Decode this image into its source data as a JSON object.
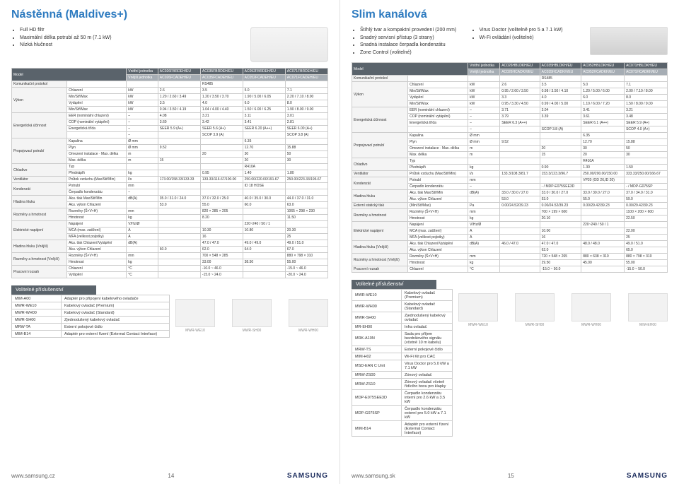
{
  "left": {
    "title": "Nástěnná (Maldives+)",
    "features": [
      "Full HD filtr",
      "Maximální délka potrubí až 50 m (7.1 kW)",
      "Nízká hlučnost"
    ],
    "header": {
      "vnitrni": "Vnitřní jednotka",
      "vnejsi": "Vnější jednotka",
      "model": "Model",
      "models_in": [
        "AC026FBRDEH/EU",
        "AC035FBRDEH/EU",
        "AC052FBRDEH/EU",
        "AC071FBRDEH/EU"
      ],
      "models_out": [
        "AC026FCADEH/EU",
        "AC035FCADEH/EU",
        "AC052FCADEH/EU",
        "AC071FCADEH/EU"
      ]
    },
    "rows": [
      {
        "g": "Komunikační protokol",
        "l": "",
        "u": "",
        "v": [
          "",
          "RS485",
          "",
          ""
        ]
      },
      {
        "g": "Výkon",
        "l": "Chlazení",
        "u": "kW",
        "v": [
          "2.6",
          "3.5",
          "5.0",
          "7.1"
        ]
      },
      {
        "g": "Výkon",
        "l": "Min/Stř/Max",
        "u": "kW",
        "v": [
          "1.20 / 2.60 / 3.49",
          "1.20 / 3.50 / 3.70",
          "1.90 / 5.00 / 6.05",
          "2.20 / 7.10 / 8.00"
        ]
      },
      {
        "g": "Výkon",
        "l": "Vytápění",
        "u": "kW",
        "v": [
          "3.5",
          "4.0",
          "6.0",
          "8.0"
        ]
      },
      {
        "g": "Výkon",
        "l": "Min/Stř/Max",
        "u": "kW",
        "v": [
          "0.94 / 3.50 / 4.19",
          "1.04 / 4.00 / 4.40",
          "1.50 / 6.00 / 6.25",
          "1.90 / 8.00 / 9.00"
        ]
      },
      {
        "g": "Energetická účinnost",
        "l": "EER (nominální chlazení)",
        "u": "–",
        "v": [
          "4.08",
          "3.21",
          "3.11",
          "3.01"
        ]
      },
      {
        "g": "Energetická účinnost",
        "l": "COP (nominální vytápění)",
        "u": "–",
        "v": [
          "3.60",
          "3.42",
          "3.41",
          "2.81"
        ]
      },
      {
        "g": "Energetická účinnost",
        "l": "Energetická třída",
        "u": "–",
        "v": [
          "SEER 5.9 (A+)",
          "SEER 5.6 (A+)",
          "SEER 6.20 (A++)",
          "SEER 6.00 (A+)"
        ]
      },
      {
        "g": "Energetická účinnost",
        "l": "",
        "u": "–",
        "v": [
          "",
          "SCOP 3.9 (A)",
          "",
          "SCOP 3.8 (A)"
        ]
      },
      {
        "g": "Propojovací potrubí",
        "l": "Kapalina",
        "u": "Ø mm",
        "v": [
          "",
          "",
          "6.35",
          ""
        ]
      },
      {
        "g": "Propojovací potrubí",
        "l": "Plyn",
        "u": "Ø mm",
        "v": [
          "9.52",
          "",
          "12.70",
          "15.88"
        ]
      },
      {
        "g": "Propojovací potrubí",
        "l": "Omezení instalace · Max. délka",
        "u": "m",
        "v": [
          "",
          "20",
          "30",
          "50"
        ]
      },
      {
        "g": "Propojovací potrubí",
        "l": "Max. délka",
        "u": "m",
        "v": [
          "15",
          "",
          "20",
          "30"
        ]
      },
      {
        "g": "Chladivo",
        "l": "Typ",
        "u": "",
        "v": [
          "",
          "",
          "R410A",
          ""
        ]
      },
      {
        "g": "Chladivo",
        "l": "Přednáplň",
        "u": "kg",
        "v": [
          "",
          "0.95",
          "1.40",
          "1.80"
        ]
      },
      {
        "g": "Ventilátor",
        "l": "Průtok vzduchu (Max/Stř/Min)",
        "u": "l/s",
        "v": [
          "173.00/158.33/133.33",
          "133.33/116.67/100.00",
          "250.00/220.00/191.67",
          "250.00/223.33/196.67"
        ]
      },
      {
        "g": "Kondenzát",
        "l": "Potrubí",
        "u": "mm",
        "v": [
          "",
          "",
          "ID 18 HOSE",
          ""
        ]
      },
      {
        "g": "Kondenzát",
        "l": "Čerpadlo kondenzátu",
        "u": "–",
        "v": [
          "",
          "",
          "",
          ""
        ]
      },
      {
        "g": "Hladina hluku",
        "l": "Aku. tlak Max/Stř/Min",
        "u": "dB(A)",
        "v": [
          "35.0 / 31.0 / 24.0",
          "37.0 / 32.0 / 25.0",
          "40.0 / 35.0 / 30.0",
          "44.0 / 37.0 / 31.0"
        ]
      },
      {
        "g": "Hladina hluku",
        "l": "Aku. výkon Chlazení",
        "u": "",
        "v": [
          "53.0",
          "55.0",
          "60.0",
          "63.0"
        ]
      },
      {
        "g": "Rozměry a hmotnost",
        "l": "Rozměry (Š×V×H)",
        "u": "mm",
        "v": [
          "",
          "820 × 285 × 205",
          "",
          "1065 × 298 × 230"
        ]
      },
      {
        "g": "Rozměry a hmotnost",
        "l": "Hmotnost",
        "u": "kg",
        "v": [
          "",
          "8.20",
          "",
          "11.50"
        ]
      },
      {
        "g": "Elektrické napájení",
        "l": "Napájení",
        "u": "V/Hz/Ø",
        "v": [
          "",
          "",
          "220~240 / 50 / 1",
          ""
        ]
      },
      {
        "g": "Elektrické napájení",
        "l": "MCA (max. zatížení)",
        "u": "A",
        "v": [
          "",
          "10.30",
          "10.80",
          "20.30"
        ]
      },
      {
        "g": "Elektrické napájení",
        "l": "MFA (velikost pojistky)",
        "u": "A",
        "v": [
          "",
          "16",
          "",
          "25"
        ]
      },
      {
        "g": "Hladina hluku (Vnější)",
        "l": "Aku. tlak Chlazení/Vytápění",
        "u": "dB(A)",
        "v": [
          "",
          "47.0 / 47.0",
          "49.0 / 49.0",
          "49.0 / 51.0"
        ]
      },
      {
        "g": "Hladina hluku (Vnější)",
        "l": "Aku. výkon Chlazení",
        "u": "",
        "v": [
          "60.0",
          "62.0",
          "64.0",
          "67.0"
        ]
      },
      {
        "g": "Rozměry a hmotnost (Vnější)",
        "l": "Rozměry (Š×V×H)",
        "u": "mm",
        "v": [
          "",
          "700 × 548 × 285",
          "",
          "880 × 798 × 310"
        ]
      },
      {
        "g": "Rozměry a hmotnost (Vnější)",
        "l": "Hmotnost",
        "u": "kg",
        "v": [
          "",
          "33.00",
          "38.50",
          "55.00"
        ]
      },
      {
        "g": "Pracovní rozsah",
        "l": "Chlazení",
        "u": "°C",
        "v": [
          "",
          "-10.0 ~ 46.0",
          "",
          "-15.0 ~ 46.0"
        ]
      },
      {
        "g": "Pracovní rozsah",
        "l": "Vytápění",
        "u": "°C",
        "v": [
          "",
          "-15.0 ~ 24.0",
          "",
          "-20.0 ~ 24.0"
        ]
      }
    ],
    "note": "* Více informací naleznete na www.samsung.cz",
    "acc_head": "Volitelné příslušenství",
    "accessories": [
      [
        "MIM-A00",
        "Adaptér pro připojení kabelového ovladače"
      ],
      [
        "MWR-WE10",
        "Kabelový ovladač (Premium)"
      ],
      [
        "MWR-WH00",
        "Kabelový ovladač (Standard)"
      ],
      [
        "MWR-SH00",
        "Zjednodušený kabelový ovladač"
      ],
      [
        "MRW-TA",
        "Externí pokojové čidlo"
      ],
      [
        "MIM-B14",
        "Adaptér pro externí řízení (External Contact Interface)"
      ]
    ],
    "img_caps": [
      "MWR-WE10",
      "MWR-SH00",
      "MWR-WH00"
    ],
    "footer_url": "www.samsung.cz",
    "footer_num": "14",
    "brand": "SAMSUNG"
  },
  "right": {
    "title": "Slim kanálová",
    "features_l": [
      "Štíhlý tvar a kompaktní provedení (200 mm)",
      "Snadný servisní přístup (3 strany)",
      "Snadná instalace čerpadla kondenzátu",
      "Zone Control (volitelné)"
    ],
    "features_r": [
      "Virus Doctor (volitelně pro 5 a 7.1 kW)",
      "Wi-Fi ovládání (volitelné)"
    ],
    "header": {
      "vnitrni": "Vnitřní jednotka",
      "vnejsi": "Vnější jednotka",
      "model": "Model",
      "models_in": [
        "AC026HBLDKH/EU",
        "AC035HBLDKH/EU",
        "AC052HBLDKH/EU",
        "AC071HBLDKH/EU"
      ],
      "models_out": [
        "AC026HCADKH/EU",
        "AC035HCADKH/EU",
        "AC052HCADKH/EU",
        "AC071HCADKH/EU"
      ]
    },
    "rows": [
      {
        "g": "Komunikační protokol",
        "l": "",
        "u": "",
        "v": [
          "",
          "RS485",
          "",
          ""
        ]
      },
      {
        "g": "Výkon",
        "l": "Chlazení",
        "u": "kW",
        "v": [
          "2.6",
          "3.5",
          "5.0",
          "7.1"
        ]
      },
      {
        "g": "Výkon",
        "l": "Min/Stř/Max",
        "u": "kW",
        "v": [
          "0.95 / 2.60 / 3.50",
          "0.98 / 3.50 / 4.10",
          "1.20 / 5.00 / 6.00",
          "2.00 / 7.10 / 8.00"
        ]
      },
      {
        "g": "Výkon",
        "l": "Vytápění",
        "u": "kW",
        "v": [
          "3.3",
          "4.0",
          "6.0",
          "8.0"
        ]
      },
      {
        "g": "Výkon",
        "l": "Min/Stř/Max",
        "u": "kW",
        "v": [
          "0.95 / 3.30 / 4.50",
          "0.99 / 4.00 / 5.00",
          "1.10 / 6.00 / 7.20",
          "1.50 / 8.00 / 9.00"
        ]
      },
      {
        "g": "Energetická účinnost",
        "l": "EER (nominální chlazení)",
        "u": "–",
        "v": [
          "3.71",
          "3.04",
          "3.41",
          "3.21"
        ]
      },
      {
        "g": "Energetická účinnost",
        "l": "COP (nominální vytápění)",
        "u": "–",
        "v": [
          "3.79",
          "3.39",
          "3.61",
          "3.48"
        ]
      },
      {
        "g": "Energetická účinnost",
        "l": "Energetická třída",
        "u": "–",
        "v": [
          "SEER 6.3 (A++)",
          "",
          "SEER 6.1 (A++)",
          "SEER 5.9 (A+)"
        ]
      },
      {
        "g": "Energetická účinnost",
        "l": "",
        "u": "–",
        "v": [
          "",
          "SCOP 3.8 (A)",
          "",
          "SCOP 4.0 (A+)"
        ]
      },
      {
        "g": "Propojovací potrubí",
        "l": "Kapalina",
        "u": "Ø mm",
        "v": [
          "",
          "",
          "6.35",
          ""
        ]
      },
      {
        "g": "Propojovací potrubí",
        "l": "Plyn",
        "u": "Ø mm",
        "v": [
          "9.52",
          "",
          "12.70",
          "15.88"
        ]
      },
      {
        "g": "Propojovací potrubí",
        "l": "Omezení instalace · Max. délka",
        "u": "m",
        "v": [
          "",
          "20",
          "30",
          "50"
        ]
      },
      {
        "g": "Propojovací potrubí",
        "l": "Max. délka",
        "u": "m",
        "v": [
          "",
          "15",
          "20",
          "30"
        ]
      },
      {
        "g": "Chladivo",
        "l": "Typ",
        "u": "",
        "v": [
          "",
          "",
          "R410A",
          ""
        ]
      },
      {
        "g": "Chladivo",
        "l": "Přednáplň",
        "u": "kg",
        "v": [
          "",
          "0.90",
          "1.30",
          "1.50"
        ]
      },
      {
        "g": "Ventilátor",
        "l": "Průtok vzduchu (Max/Stř/Min)",
        "u": "l/s",
        "v": [
          "133.3/108.3/81.7",
          "153.3/123.3/96.7",
          "250.00/200.00/150.00",
          "333.33/250.00/166.67"
        ]
      },
      {
        "g": "Kondenzát",
        "l": "Potrubí",
        "u": "mm",
        "v": [
          "",
          "",
          "VP20 (OD 26,ID 20)",
          ""
        ]
      },
      {
        "g": "Kondenzát",
        "l": "Čerpadlo kondenzátu",
        "u": "–",
        "v": [
          "",
          "- / MDP-E075SEE3D",
          "",
          "- / MDP-G075SP"
        ]
      },
      {
        "g": "Hladina hluku",
        "l": "Aku. tlak Max/Stř/Min",
        "u": "dB(A)",
        "v": [
          "33.0 / 30.0 / 27.0",
          "33.0 / 30.0 / 27.0",
          "33.0 / 30.0 / 27.0",
          "37.0 / 34.0 / 31.0"
        ]
      },
      {
        "g": "Hladina hluku",
        "l": "Aku. výkon Chlazení",
        "u": "",
        "v": [
          "53.0",
          "53.0",
          "55.0",
          "59.0"
        ]
      },
      {
        "g": "Externí statický tlak",
        "l": "(Min/Stř/Max)",
        "u": "Pa",
        "v": [
          "0.00/24.52/39.23",
          "0.00/24.52/39.23",
          "0.00/29.42/39.23",
          "0.00/29.42/39.23"
        ]
      },
      {
        "g": "Rozměry a hmotnost",
        "l": "Rozměry (Š×V×H)",
        "u": "mm",
        "v": [
          "",
          "700 × 199 × 600",
          "",
          "1100 × 200 × 600"
        ]
      },
      {
        "g": "Rozměry a hmotnost",
        "l": "Hmotnost",
        "u": "kg",
        "v": [
          "",
          "20.10",
          "",
          "22.50"
        ]
      },
      {
        "g": "Elektrické napájení",
        "l": "Napájení",
        "u": "V/Hz/Ø",
        "v": [
          "",
          "",
          "220~240 / 50 / 1",
          ""
        ]
      },
      {
        "g": "Elektrické napájení",
        "l": "MCA (max. zatížení)",
        "u": "A",
        "v": [
          "",
          "10.00",
          "",
          "22.00"
        ]
      },
      {
        "g": "Elektrické napájení",
        "l": "MFA (velikost pojistky)",
        "u": "A",
        "v": [
          "",
          "16",
          "",
          "25"
        ]
      },
      {
        "g": "Hladina hluku (Vnější)",
        "l": "Aku. tlak Chlazení/Vytápění",
        "u": "dB(A)",
        "v": [
          "46.0 / 47.0",
          "47.0 / 47.0",
          "48.0 / 48.0",
          "49.0 / 51.0"
        ]
      },
      {
        "g": "Hladina hluku (Vnější)",
        "l": "Aku. výkon Chlazení",
        "u": "",
        "v": [
          "",
          "62.0",
          "",
          "65.0"
        ]
      },
      {
        "g": "Rozměry a hmotnost (Vnější)",
        "l": "Rozměry (Š×V×H)",
        "u": "mm",
        "v": [
          "",
          "720 × 548 × 265",
          "880 × 638 × 310",
          "880 × 798 × 310"
        ]
      },
      {
        "g": "Rozměry a hmotnost (Vnější)",
        "l": "Hmotnost",
        "u": "kg",
        "v": [
          "",
          "29.50",
          "45.00",
          "55.00"
        ]
      },
      {
        "g": "Pracovní rozsah",
        "l": "Chlazení",
        "u": "°C",
        "v": [
          "",
          "-15.0 ~ 50.0",
          "",
          "-15.0 ~ 50.0"
        ]
      }
    ],
    "acc_head": "Volitelné příslušenství",
    "accessories": [
      [
        "MWR-WE10",
        "Kabelový ovladač (Premium)"
      ],
      [
        "MWR-WH00",
        "Kabelový ovladač (Standard)"
      ],
      [
        "MWR-SH00",
        "Zjednodušený kabelový ovladač"
      ],
      [
        "MR-EH00",
        "Infra ovladač"
      ],
      [
        "MRK-A10N",
        "Sada pro příjem bezdrátového signálu (včetně 10 m kabelu)"
      ],
      [
        "MRW-TS",
        "Externí pokojové čidlo"
      ],
      [
        "MIM-H02",
        "Wi-Fi Kit pro CAC"
      ],
      [
        "MSD-EAN C Unit",
        "Virus Doctor pro 5.0 kW a 7.1 kW"
      ],
      [
        "MRW-ZS00",
        "Zónový ovladač"
      ],
      [
        "MRW-ZS10",
        "Zónový ovladač včetně řídícího boxu pro klapky"
      ],
      [
        "MDP-E075SEE3D",
        "Čerpadlo kondenzátu interní pro 2.6 kW a 3.5 kW"
      ],
      [
        "MDP-G075SP",
        "Čerpadlo kondenzátu externí pro 5.0 kW a 7.1 kW"
      ],
      [
        "MIM-B14",
        "Adaptér pro externí řízení (External Contact Interface)"
      ]
    ],
    "img_caps": [
      "MWR-WE10",
      "MWR-SH00",
      "MWR-WH00",
      "MIM-EH00"
    ],
    "footer_url": "www.samsung.sk",
    "footer_num": "15",
    "brand": "SAMSUNG"
  },
  "labels": {
    "system": "Systém",
    "vnitrni_jednotka": "Vnitřní jednotka",
    "vnejsi_jednotka": "Vnější jednotka"
  },
  "colors": {
    "heading": "#2e7bc0",
    "hdr_dark": "#5a636b",
    "hdr_light": "#a6adb4",
    "border": "#cccccc"
  }
}
